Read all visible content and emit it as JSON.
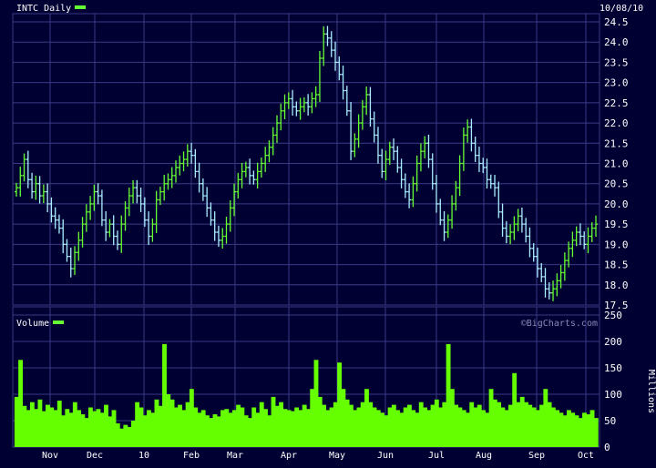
{
  "chart_data": [
    {
      "type": "ohlc",
      "title": "INTC Daily",
      "date_label": "10/08/10",
      "colors": {
        "up": "#66ff33",
        "down": "#aaeeff",
        "legend": "#66ff33",
        "grid": "#3a3a86",
        "background": "#000033",
        "text": "#ffffff"
      },
      "ylim": [
        17.5,
        24.5
      ],
      "y_ticks": [
        "17.5",
        "18.0",
        "18.5",
        "19.0",
        "19.5",
        "20.0",
        "20.5",
        "21.0",
        "21.5",
        "22.0",
        "22.5",
        "23.0",
        "23.5",
        "24.0",
        "24.5"
      ],
      "x_ticks": [
        "Nov",
        "Dec",
        "10",
        "Feb",
        "Mar",
        "Apr",
        "May",
        "Jun",
        "Jul",
        "Aug",
        "Sep",
        "Oct"
      ],
      "series": [
        {
          "name": "",
          "values": [
            20.4,
            20.7,
            21.1,
            20.6,
            20.3,
            20.5,
            20.2,
            20.3,
            20.0,
            19.7,
            19.6,
            19.4,
            19.0,
            18.7,
            18.4,
            18.8,
            19.1,
            19.5,
            19.8,
            20.0,
            20.3,
            20.2,
            19.6,
            19.3,
            19.5,
            19.2,
            19.0,
            19.5,
            19.9,
            20.2,
            20.4,
            20.2,
            20.0,
            19.6,
            19.2,
            19.5,
            20.1,
            20.3,
            20.5,
            20.6,
            20.7,
            20.9,
            21.0,
            21.1,
            21.3,
            21.2,
            20.8,
            20.5,
            20.2,
            19.9,
            19.6,
            19.3,
            19.1,
            19.2,
            19.5,
            19.9,
            20.3,
            20.6,
            20.8,
            20.9,
            20.7,
            20.6,
            20.8,
            21.0,
            21.2,
            21.4,
            21.7,
            22.0,
            22.3,
            22.5,
            22.6,
            22.4,
            22.3,
            22.4,
            22.5,
            22.4,
            22.6,
            22.7,
            23.6,
            24.2,
            24.1,
            23.8,
            23.5,
            23.2,
            22.8,
            22.3,
            21.3,
            21.6,
            22.0,
            22.4,
            22.7,
            22.1,
            21.7,
            21.2,
            20.8,
            21.1,
            21.4,
            21.3,
            20.9,
            20.6,
            20.3,
            20.1,
            20.5,
            21.0,
            21.3,
            21.5,
            21.1,
            20.5,
            20.0,
            19.6,
            19.3,
            19.6,
            20.0,
            20.4,
            21.0,
            21.7,
            21.9,
            21.5,
            21.2,
            21.0,
            20.9,
            20.6,
            20.5,
            20.4,
            19.8,
            19.4,
            19.2,
            19.3,
            19.5,
            19.7,
            19.5,
            19.2,
            18.9,
            18.7,
            18.4,
            18.2,
            17.9,
            17.8,
            17.9,
            18.1,
            18.3,
            18.6,
            18.9,
            19.1,
            19.3,
            19.2,
            19.0,
            19.2,
            19.4,
            19.5
          ]
        }
      ]
    },
    {
      "type": "bar",
      "title": "Volume",
      "ylabel": "Millions",
      "watermark": "©BigCharts.com",
      "colors": {
        "bars": "#66ff00",
        "legend": "#66ff33"
      },
      "ylim": [
        0,
        250
      ],
      "y_ticks": [
        "0",
        "50",
        "100",
        "150",
        "200",
        "250"
      ],
      "series": [
        {
          "name": "",
          "values": [
            95,
            165,
            78,
            70,
            85,
            72,
            90,
            68,
            80,
            75,
            70,
            88,
            60,
            72,
            65,
            85,
            70,
            62,
            55,
            75,
            68,
            72,
            65,
            80,
            58,
            70,
            45,
            35,
            42,
            38,
            50,
            85,
            75,
            60,
            70,
            65,
            90,
            78,
            195,
            100,
            90,
            75,
            80,
            70,
            85,
            110,
            75,
            65,
            70,
            60,
            55,
            62,
            58,
            70,
            72,
            65,
            70,
            80,
            75,
            60,
            55,
            75,
            65,
            85,
            72,
            60,
            95,
            78,
            85,
            72,
            70,
            68,
            75,
            70,
            80,
            72,
            110,
            165,
            95,
            80,
            70,
            75,
            85,
            160,
            110,
            90,
            80,
            70,
            75,
            85,
            110,
            85,
            75,
            70,
            65,
            60,
            75,
            80,
            70,
            65,
            75,
            80,
            70,
            65,
            85,
            75,
            70,
            80,
            90,
            75,
            85,
            195,
            110,
            80,
            75,
            70,
            65,
            85,
            75,
            80,
            70,
            65,
            110,
            90,
            85,
            75,
            70,
            80,
            140,
            85,
            95,
            85,
            80,
            75,
            70,
            80,
            110,
            85,
            75,
            70,
            65,
            60,
            70,
            65,
            60,
            55,
            65,
            62,
            70,
            55
          ]
        }
      ]
    }
  ]
}
